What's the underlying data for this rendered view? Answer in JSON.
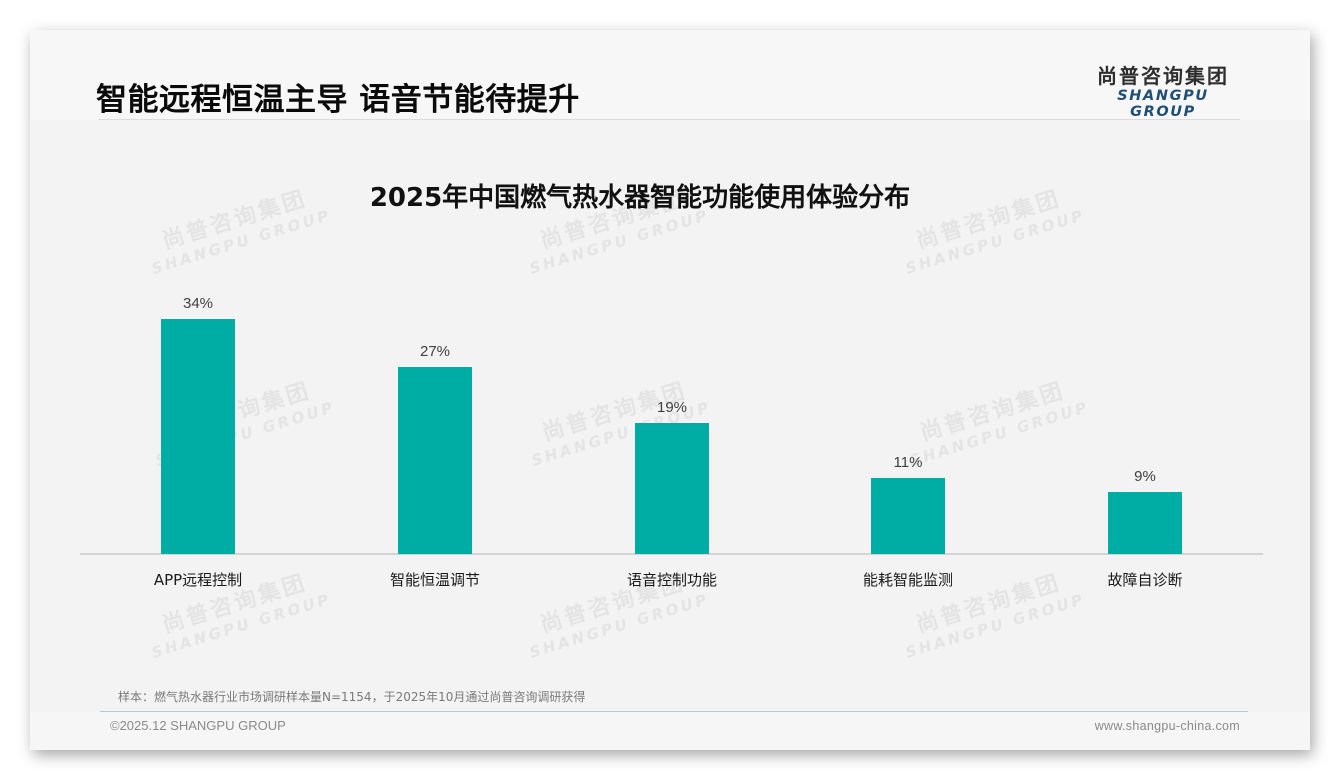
{
  "slide": {
    "headline": "智能远程恒温主导 语音节能待提升",
    "logo": {
      "cn": "尚普咨询集团",
      "en": "SHANGPU GROUP"
    },
    "watermark": {
      "cn": "尚普咨询集团",
      "en": "SHANGPU GROUP"
    },
    "note": "样本：燃气热水器行业市场调研样本量N=1154，于2025年10月通过尚普咨询调研获得",
    "footer": {
      "copyright": "©2025.12 SHANGPU GROUP",
      "website": "www.shangpu-china.com"
    },
    "colors": {
      "bar": "#00ADA5",
      "logo_en": "#1F4E79"
    }
  },
  "chart_data": {
    "type": "bar",
    "title": "2025年中国燃气热水器智能功能使用体验分布",
    "categories": [
      "APP远程控制",
      "智能恒温调节",
      "语音控制功能",
      "能耗智能监测",
      "故障自诊断"
    ],
    "values": [
      34,
      27,
      19,
      11,
      9
    ],
    "value_labels": [
      "34%",
      "27%",
      "19%",
      "11%",
      "9%"
    ],
    "unit": "%",
    "xlabel": "",
    "ylabel": "",
    "ylim": [
      0,
      40
    ],
    "grid": false,
    "legend": null,
    "show_y_axis": false
  }
}
